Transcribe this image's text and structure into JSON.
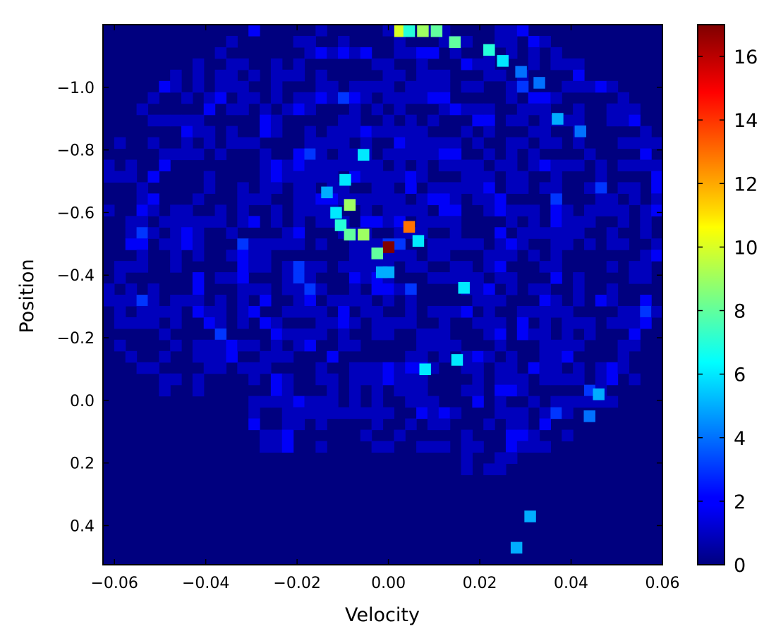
{
  "chart_data": {
    "type": "heatmap",
    "title": "",
    "xlabel": "Velocity",
    "ylabel": "Position",
    "xlim": [
      -0.0625,
      0.06
    ],
    "ylim": [
      0.525,
      -1.2
    ],
    "x_ticks": [
      {
        "value": -0.06,
        "label": "−0.06"
      },
      {
        "value": -0.04,
        "label": "−0.04"
      },
      {
        "value": -0.02,
        "label": "−0.02"
      },
      {
        "value": 0.0,
        "label": "0.00"
      },
      {
        "value": 0.02,
        "label": "0.02"
      },
      {
        "value": 0.04,
        "label": "0.04"
      },
      {
        "value": 0.06,
        "label": "0.06"
      }
    ],
    "y_ticks": [
      {
        "value": -1.0,
        "label": "−1.0"
      },
      {
        "value": -0.8,
        "label": "−0.8"
      },
      {
        "value": -0.6,
        "label": "−0.6"
      },
      {
        "value": -0.4,
        "label": "−0.4"
      },
      {
        "value": -0.2,
        "label": "−0.2"
      },
      {
        "value": 0.0,
        "label": "0.0"
      },
      {
        "value": 0.2,
        "label": "0.2"
      },
      {
        "value": 0.4,
        "label": "0.4"
      }
    ],
    "colorbar": {
      "colormap": "jet",
      "range": [
        0,
        17
      ],
      "ticks": [
        {
          "value": 0,
          "label": "0"
        },
        {
          "value": 2,
          "label": "2"
        },
        {
          "value": 4,
          "label": "4"
        },
        {
          "value": 6,
          "label": "6"
        },
        {
          "value": 8,
          "label": "8"
        },
        {
          "value": 10,
          "label": "10"
        },
        {
          "value": 12,
          "label": "12"
        },
        {
          "value": 14,
          "label": "14"
        },
        {
          "value": 16,
          "label": "16"
        }
      ]
    },
    "grid": false,
    "background_value": 0,
    "cells": [
      {
        "x": 0.0,
        "y": -0.49,
        "value": 17
      },
      {
        "x": 0.0045,
        "y": -0.555,
        "value": 13
      },
      {
        "x": -0.0095,
        "y": -0.705,
        "value": 6
      },
      {
        "x": -0.0055,
        "y": -0.785,
        "value": 6
      },
      {
        "x": -0.0085,
        "y": -0.625,
        "value": 9
      },
      {
        "x": -0.0055,
        "y": -0.53,
        "value": 9
      },
      {
        "x": -0.0025,
        "y": -0.47,
        "value": 8
      },
      {
        "x": -0.0135,
        "y": -0.665,
        "value": 5
      },
      {
        "x": -0.0115,
        "y": -0.6,
        "value": 6
      },
      {
        "x": -0.0105,
        "y": -0.56,
        "value": 7
      },
      {
        "x": -0.0085,
        "y": -0.53,
        "value": 8
      },
      {
        "x": 0.0065,
        "y": -0.51,
        "value": 6
      },
      {
        "x": -0.0015,
        "y": -0.41,
        "value": 5
      },
      {
        "x": 0.0,
        "y": -0.41,
        "value": 5
      },
      {
        "x": 0.0025,
        "y": -1.18,
        "value": 10
      },
      {
        "x": 0.0045,
        "y": -1.18,
        "value": 7
      },
      {
        "x": 0.0075,
        "y": -1.18,
        "value": 9
      },
      {
        "x": 0.0105,
        "y": -1.18,
        "value": 8
      },
      {
        "x": 0.0145,
        "y": -1.145,
        "value": 8
      },
      {
        "x": 0.022,
        "y": -1.12,
        "value": 7
      },
      {
        "x": 0.025,
        "y": -1.085,
        "value": 6
      },
      {
        "x": 0.029,
        "y": -1.05,
        "value": 4
      },
      {
        "x": 0.033,
        "y": -1.015,
        "value": 4
      },
      {
        "x": 0.0165,
        "y": -0.36,
        "value": 6
      },
      {
        "x": 0.015,
        "y": -0.13,
        "value": 6
      },
      {
        "x": 0.008,
        "y": -0.1,
        "value": 6
      },
      {
        "x": 0.046,
        "y": -0.02,
        "value": 5
      },
      {
        "x": 0.044,
        "y": 0.05,
        "value": 4
      },
      {
        "x": 0.031,
        "y": 0.37,
        "value": 5
      },
      {
        "x": 0.028,
        "y": 0.47,
        "value": 5
      },
      {
        "x": 0.037,
        "y": -0.9,
        "value": 5
      },
      {
        "x": 0.042,
        "y": -0.86,
        "value": 4
      }
    ]
  }
}
